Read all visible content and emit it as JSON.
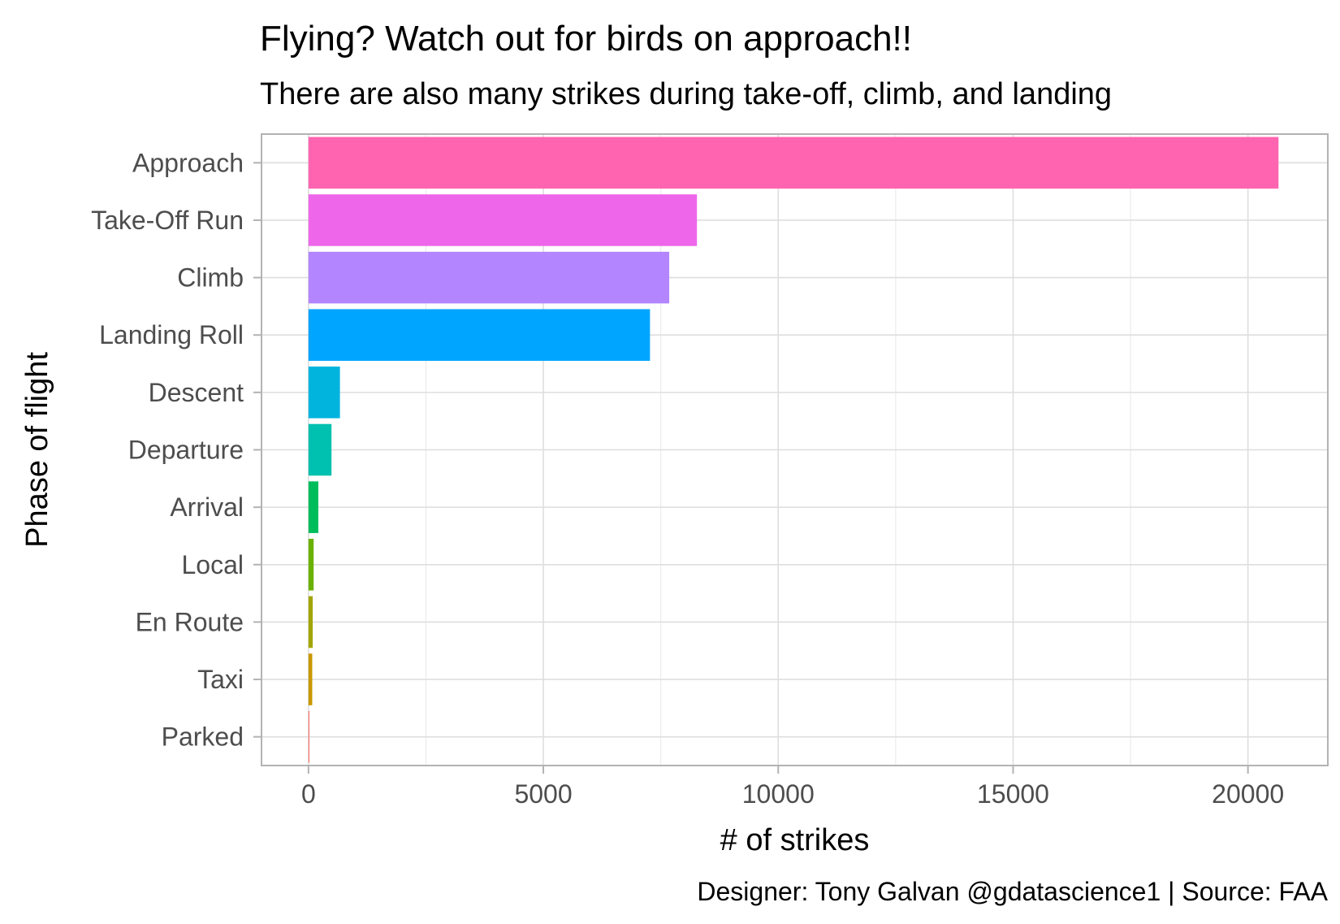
{
  "chart_data": {
    "type": "bar",
    "orientation": "horizontal",
    "title": "Flying? Watch out for birds on approach!!",
    "subtitle": "There are also many strikes during take-off, climb, and landing",
    "xlabel": "# of strikes",
    "ylabel": "Phase of flight",
    "caption": "Designer: Tony Galvan @gdatascience1  |  Source: FAA",
    "categories": [
      "Approach",
      "Take-Off Run",
      "Climb",
      "Landing Roll",
      "Descent",
      "Departure",
      "Arrival",
      "Local",
      "En Route",
      "Taxi",
      "Parked"
    ],
    "values": [
      20650,
      8270,
      7680,
      7270,
      670,
      490,
      210,
      110,
      90,
      80,
      20
    ],
    "colors": [
      "#FF64B0",
      "#EE67EB",
      "#B385FF",
      "#00A5FF",
      "#00B4DE",
      "#00C0AF",
      "#00BD5C",
      "#6BB100",
      "#A3A500",
      "#C99800",
      "#F8766D"
    ],
    "xlim": [
      -1000,
      21700
    ],
    "xticks": [
      0,
      5000,
      10000,
      15000,
      20000
    ],
    "grid": true,
    "legend": "none"
  }
}
